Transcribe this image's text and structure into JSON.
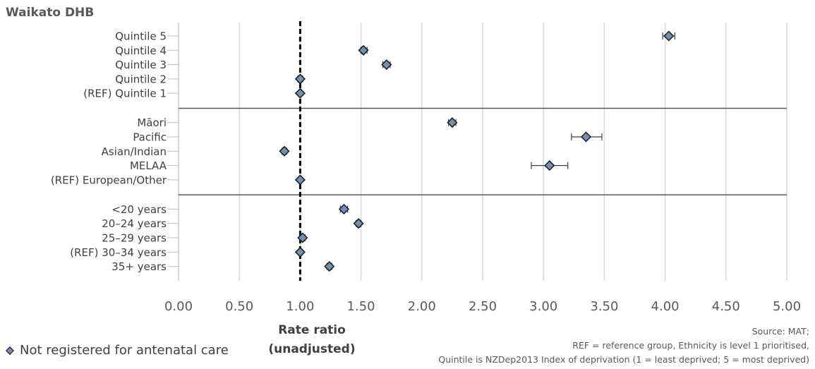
{
  "panel_title": "Waikato DHB",
  "chart_data": {
    "type": "scatter",
    "orientation": "horizontal-forest-plot",
    "xlabel": "Rate ratio (unadjusted)",
    "xlabel_lines": [
      "Rate ratio",
      "(unadjusted)"
    ],
    "xlim": [
      0,
      5
    ],
    "xticks": [
      "0.00",
      "0.50",
      "1.00",
      "1.50",
      "2.00",
      "2.50",
      "3.00",
      "3.50",
      "4.00",
      "4.50",
      "5.00"
    ],
    "xtick_values": [
      0,
      0.5,
      1,
      1.5,
      2,
      2.5,
      3,
      3.5,
      4,
      4.5,
      5
    ],
    "reference_line": 1.0,
    "grid": "vertical",
    "series_name": "Not registered for antenatal care",
    "groups": [
      {
        "items": [
          {
            "label": "Quintile 5",
            "value": 4.03,
            "ci": [
              3.98,
              4.08
            ]
          },
          {
            "label": "Quintile 4",
            "value": 1.52,
            "ci": [
              1.5,
              1.55
            ]
          },
          {
            "label": "Quintile 3",
            "value": 1.71,
            "ci": [
              1.68,
              1.74
            ]
          },
          {
            "label": "Quintile 2",
            "value": 1.0,
            "ci": [
              0.98,
              1.02
            ]
          },
          {
            "label": "(REF) Quintile 1",
            "value": 1.0,
            "ci": [
              1.0,
              1.0
            ]
          }
        ]
      },
      {
        "items": [
          {
            "label": "Māori",
            "value": 2.25,
            "ci": [
              2.22,
              2.28
            ]
          },
          {
            "label": "Pacific",
            "value": 3.35,
            "ci": [
              3.23,
              3.48
            ]
          },
          {
            "label": "Asian/Indian",
            "value": 0.87,
            "ci": [
              0.85,
              0.89
            ]
          },
          {
            "label": "MELAA",
            "value": 3.05,
            "ci": [
              2.9,
              3.2
            ]
          },
          {
            "label": "(REF) European/Other",
            "value": 1.0,
            "ci": [
              1.0,
              1.0
            ]
          }
        ]
      },
      {
        "items": [
          {
            "label": "<20 years",
            "value": 1.36,
            "ci": [
              1.33,
              1.39
            ]
          },
          {
            "label": "20–24 years",
            "value": 1.48,
            "ci": [
              1.46,
              1.5
            ]
          },
          {
            "label": "25–29 years",
            "value": 1.02,
            "ci": [
              1.0,
              1.04
            ]
          },
          {
            "label": "(REF) 30–34 years",
            "value": 1.0,
            "ci": [
              1.0,
              1.0
            ]
          },
          {
            "label": "35+ years",
            "value": 1.24,
            "ci": [
              1.22,
              1.26
            ]
          }
        ]
      }
    ],
    "marker_color": "#6f8fb5",
    "marker_stroke": "#1a1a1a"
  },
  "legend_label": "Not registered for antenatal care",
  "source_lines": [
    "Source: MAT;",
    "REF = reference group, Ethnicity is level 1 prioritised,",
    "Quintile is NZDep2013 Index of deprivation (1 = least deprived; 5 = most deprived)"
  ]
}
